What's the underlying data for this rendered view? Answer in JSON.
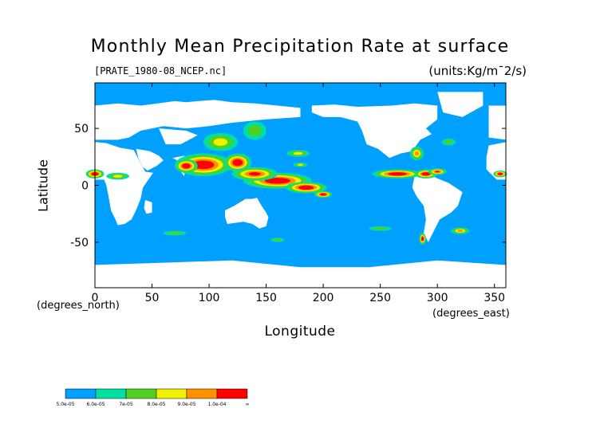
{
  "chart_data": {
    "type": "heatmap",
    "title": "Monthly Mean Precipitation Rate at surface",
    "subtitle": "[PRATE_1980-08_NCEP.nc]",
    "units": "(units:Kg/m¯2/s)",
    "xlabel": "Longitude",
    "ylabel": "Latitude",
    "x_unit": "(degrees_east)",
    "y_unit": "(degrees_north)",
    "xlim": [
      0,
      360
    ],
    "ylim": [
      -90,
      90
    ],
    "x_ticks": [
      0,
      50,
      100,
      150,
      200,
      250,
      300,
      350
    ],
    "y_ticks": [
      50,
      0,
      -50
    ],
    "colorbar": {
      "levels": [
        "5.0e-05",
        "6.0e-05",
        "7e-05",
        "8.0e-05",
        "9.0e-05",
        "1.0e-04",
        "∞"
      ],
      "colors": [
        "#00a0ff",
        "#00e0a0",
        "#50d020",
        "#f0f000",
        "#ff9000",
        "#ff0000"
      ]
    },
    "background_color": "#00a0ff",
    "missing_color": "#ffffff"
  }
}
